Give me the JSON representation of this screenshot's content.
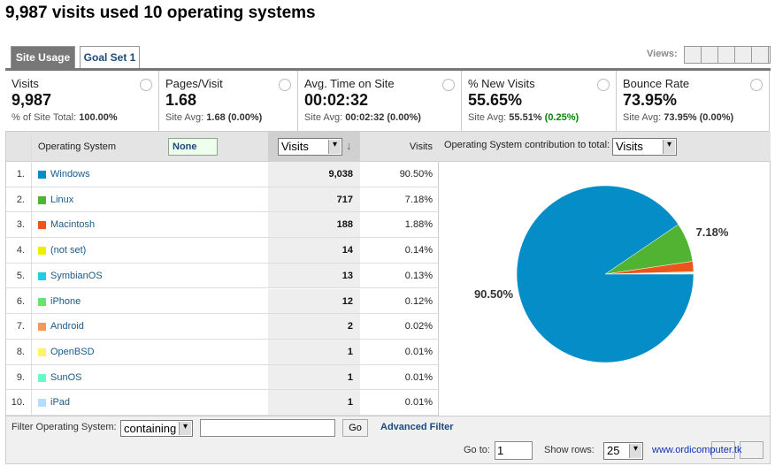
{
  "title": "9,987 visits used 10 operating systems",
  "tabs": [
    "Site Usage",
    "Goal Set 1"
  ],
  "views_label": "Views:",
  "metrics": [
    {
      "name": "Visits",
      "value": "9,987",
      "sub_label": "% of Site Total:",
      "sub_value": "100.00%"
    },
    {
      "name": "Pages/Visit",
      "value": "1.68",
      "sub_label": "Site Avg:",
      "sub_value": "1.68 (0.00%)"
    },
    {
      "name": "Avg. Time on Site",
      "value": "00:02:32",
      "sub_label": "Site Avg:",
      "sub_value": "00:02:32 (0.00%)"
    },
    {
      "name": "% New Visits",
      "value": "55.65%",
      "sub_label": "Site Avg:",
      "sub_value": "55.51%",
      "sub_delta": "(0.25%)"
    },
    {
      "name": "Bounce Rate",
      "value": "73.95%",
      "sub_label": "Site Avg:",
      "sub_value": "73.95% (0.00%)"
    }
  ],
  "table": {
    "header": {
      "dimension": "Operating System",
      "segment": "None",
      "metric_select": "Visits",
      "metric": "Visits",
      "pie_label": "Operating System contribution to total:",
      "pie_select": "Visits"
    },
    "rows": [
      {
        "rank": "1.",
        "name": "Windows",
        "color": "#058dc7",
        "visits": 9038,
        "visits_label": "9,038",
        "percent": "90.50%"
      },
      {
        "rank": "2.",
        "name": "Linux",
        "color": "#50b432",
        "visits": 717,
        "percent": "7.18%"
      },
      {
        "rank": "3.",
        "name": "Macintosh",
        "color": "#ed561b",
        "visits": 188,
        "percent": "1.88%"
      },
      {
        "rank": "4.",
        "name": "(not set)",
        "color": "#edef00",
        "visits": 14,
        "percent": "0.14%"
      },
      {
        "rank": "5.",
        "name": "SymbianOS",
        "color": "#24cbe5",
        "visits": 13,
        "percent": "0.13%"
      },
      {
        "rank": "6.",
        "name": "iPhone",
        "color": "#64e572",
        "visits": 12,
        "percent": "0.12%"
      },
      {
        "rank": "7.",
        "name": "Android",
        "color": "#ff9655",
        "visits": 2,
        "percent": "0.02%"
      },
      {
        "rank": "8.",
        "name": "OpenBSD",
        "color": "#fff263",
        "visits": 1,
        "percent": "0.01%"
      },
      {
        "rank": "9.",
        "name": "SunOS",
        "color": "#6af9c4",
        "visits": 1,
        "percent": "0.01%"
      },
      {
        "rank": "10.",
        "name": "iPad",
        "color": "#b2deff",
        "visits": 1,
        "percent": "0.01%"
      }
    ]
  },
  "footer": {
    "filter_label": "Filter Operating System:",
    "filter_select": "containing",
    "go": "Go",
    "advanced": "Advanced Filter",
    "goto_label": "Go to:",
    "goto_value": "1",
    "rows_label": "Show rows:",
    "rows_value": "25",
    "watermark": "www.ordicomputer.tk"
  }
}
